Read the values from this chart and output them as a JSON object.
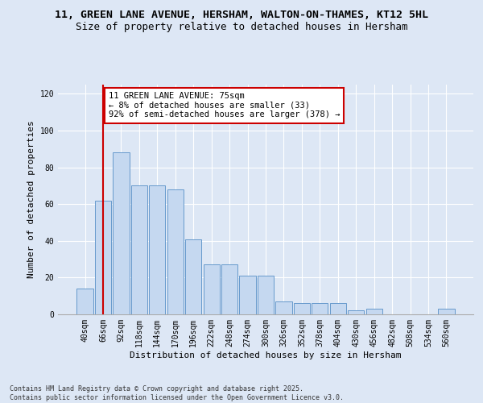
{
  "title1": "11, GREEN LANE AVENUE, HERSHAM, WALTON-ON-THAMES, KT12 5HL",
  "title2": "Size of property relative to detached houses in Hersham",
  "xlabel": "Distribution of detached houses by size in Hersham",
  "ylabel": "Number of detached properties",
  "categories": [
    "40sqm",
    "66sqm",
    "92sqm",
    "118sqm",
    "144sqm",
    "170sqm",
    "196sqm",
    "222sqm",
    "248sqm",
    "274sqm",
    "300sqm",
    "326sqm",
    "352sqm",
    "378sqm",
    "404sqm",
    "430sqm",
    "456sqm",
    "482sqm",
    "508sqm",
    "534sqm",
    "560sqm"
  ],
  "values": [
    14,
    62,
    88,
    70,
    70,
    68,
    41,
    27,
    27,
    21,
    21,
    7,
    6,
    6,
    6,
    2,
    3,
    0,
    0,
    0,
    3
  ],
  "bar_color": "#c5d8f0",
  "bar_edge_color": "#6699cc",
  "background_color": "#dde7f5",
  "grid_color": "#ffffff",
  "vline_color": "#cc0000",
  "vline_x": 1.0,
  "annotation_text": "11 GREEN LANE AVENUE: 75sqm\n← 8% of detached houses are smaller (33)\n92% of semi-detached houses are larger (378) →",
  "annotation_box_facecolor": "#ffffff",
  "annotation_box_edgecolor": "#cc0000",
  "ylim": [
    0,
    125
  ],
  "yticks": [
    0,
    20,
    40,
    60,
    80,
    100,
    120
  ],
  "footnote": "Contains HM Land Registry data © Crown copyright and database right 2025.\nContains public sector information licensed under the Open Government Licence v3.0.",
  "title_fontsize": 9.5,
  "subtitle_fontsize": 9,
  "ylabel_fontsize": 8,
  "xlabel_fontsize": 8,
  "tick_fontsize": 7,
  "annotation_fontsize": 7.5,
  "footnote_fontsize": 6
}
